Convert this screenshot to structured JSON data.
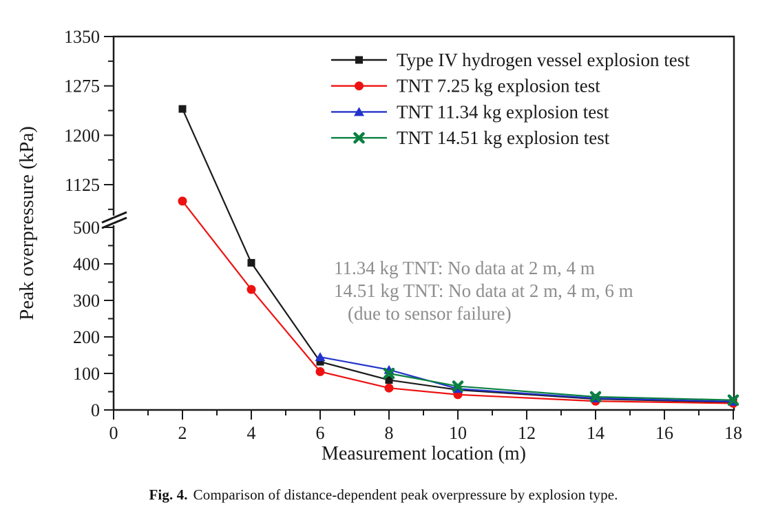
{
  "figure": {
    "caption_prefix": "Fig. 4.",
    "caption_text": "Comparison of distance-dependent peak overpressure by explosion type."
  },
  "chart_data": {
    "type": "line",
    "title": "",
    "xlabel": "Measurement location (m)",
    "ylabel": "Peak overpressure (kPa)",
    "xlim": [
      0,
      18
    ],
    "x_ticks_major": [
      0,
      2,
      4,
      6,
      8,
      10,
      12,
      14,
      16,
      18
    ],
    "x_ticks_minor": [
      1,
      3,
      5,
      7,
      9,
      11,
      13,
      15,
      17
    ],
    "y_axis_broken": true,
    "y_lower_range": [
      0,
      500
    ],
    "y_upper_range": [
      1125,
      1350
    ],
    "y_ticks_lower_major": [
      0,
      100,
      200,
      300,
      400,
      500
    ],
    "y_ticks_lower_minor": [
      50,
      150,
      250,
      350,
      450
    ],
    "y_ticks_upper_major": [
      1125,
      1200,
      1275,
      1350
    ],
    "y_ticks_upper_minor": [
      1087.5,
      1162.5,
      1237.5,
      1312.5
    ],
    "grid": false,
    "legend_position": "top-right-inside",
    "series": [
      {
        "name": "Type IV hydrogen vessel explosion test",
        "color": "#1a1a1a",
        "marker": "square",
        "x": [
          2,
          4,
          6,
          8,
          10,
          14,
          18
        ],
        "y": [
          1240,
          403,
          132,
          82,
          55,
          30,
          21
        ]
      },
      {
        "name": "TNT 7.25 kg explosion test",
        "color": "#ee1111",
        "marker": "circle",
        "x": [
          2,
          4,
          6,
          8,
          10,
          14,
          18
        ],
        "y": [
          1100,
          330,
          105,
          60,
          42,
          24,
          18
        ]
      },
      {
        "name": "TNT 11.34 kg explosion test",
        "color": "#2233cc",
        "marker": "triangle",
        "x": [
          6,
          8,
          10,
          14,
          18
        ],
        "y": [
          145,
          110,
          58,
          32,
          23
        ]
      },
      {
        "name": "TNT 14.51 kg explosion test",
        "color": "#0a8040",
        "marker": "x",
        "x": [
          8,
          10,
          14,
          18
        ],
        "y": [
          100,
          65,
          36,
          27
        ]
      }
    ],
    "annotation": {
      "color": "#8d8d8d",
      "lines": [
        "11.34 kg TNT: No data at 2 m, 4 m",
        "14.51 kg TNT: No data at 2 m, 4 m, 6 m",
        "(due to sensor failure)"
      ]
    }
  }
}
